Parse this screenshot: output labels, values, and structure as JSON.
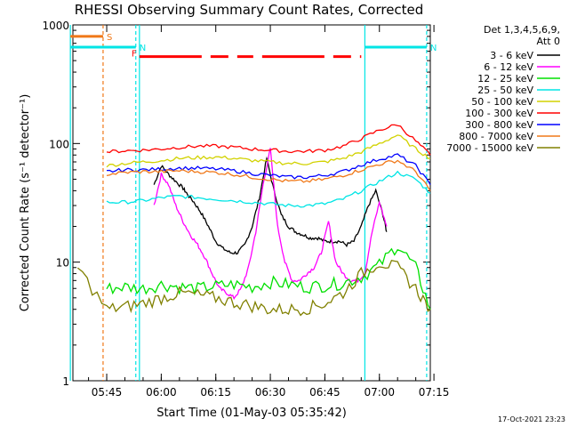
{
  "chart_data": {
    "type": "line",
    "title": "RHESSI Observing Summary Count Rates, Corrected",
    "xlabel": "Start Time (01-May-03 05:35:42)",
    "ylabel": "Corrected Count Rate (s⁻¹ detector⁻¹)",
    "yscale": "log",
    "ylim": [
      1,
      1000
    ],
    "xlim": [
      "05:35:42",
      "07:15"
    ],
    "y_ticks": [
      "1",
      "10",
      "100",
      "1000"
    ],
    "x_ticks": [
      "05:45",
      "06:00",
      "06:15",
      "06:30",
      "06:45",
      "07:00",
      "07:15"
    ],
    "legend_header": [
      "Det 1,3,4,5,6,9,",
      "Att 0"
    ],
    "legend_position": "right",
    "date_stamp": "17-Oct-2021 23:23",
    "flags": [
      {
        "label": "S",
        "color": "#f07818",
        "start": "05:35:42",
        "end": "05:44",
        "level": 800
      },
      {
        "label": "N",
        "color": "#00e5e5",
        "start": "05:35:42",
        "end": "05:53",
        "level": 650
      },
      {
        "label": "N",
        "color": "#00e5e5",
        "start": "06:56",
        "end": "07:13",
        "level": 650
      },
      {
        "label": "F",
        "color": "#ff0000",
        "start": "05:54",
        "end": "06:55",
        "level": 540,
        "dashed": true
      }
    ],
    "markers": [
      {
        "time": "05:35:42",
        "color": "#00e5e5",
        "style": "solid"
      },
      {
        "time": "05:44",
        "color": "#f07818",
        "style": "dashed"
      },
      {
        "time": "05:53",
        "color": "#00e5e5",
        "style": "dashed"
      },
      {
        "time": "05:54",
        "color": "#00e5e5",
        "style": "solid"
      },
      {
        "time": "06:56",
        "color": "#00e5e5",
        "style": "solid"
      },
      {
        "time": "07:13",
        "color": "#00e5e5",
        "style": "dashed"
      }
    ],
    "time_minutes_from_0545": [
      -9.3,
      -7,
      -5,
      0,
      5,
      8,
      8.5,
      10,
      12,
      15,
      18,
      20,
      22,
      25,
      28,
      29,
      30,
      32,
      35,
      38,
      40,
      41,
      43,
      45,
      47,
      49,
      50,
      51,
      52,
      55,
      58,
      60,
      62,
      65,
      68,
      70,
      72,
      75,
      78,
      80,
      85,
      88,
      89
    ],
    "series": [
      {
        "name": "3 - 6 keV",
        "color": "#000000",
        "t": [
          13,
          15,
          17,
          19,
          21,
          22,
          24,
          26,
          28,
          30,
          32,
          34,
          36,
          38,
          40,
          42,
          44,
          46,
          48,
          50,
          52,
          54,
          56,
          58,
          60,
          62,
          64,
          66,
          68,
          70,
          72,
          74,
          76,
          77
        ],
        "values": [
          45,
          65,
          55,
          48,
          42,
          38,
          32,
          26,
          20,
          15,
          13,
          12,
          12,
          14,
          20,
          35,
          75,
          40,
          25,
          20,
          18,
          17,
          16,
          16,
          15,
          15,
          15,
          14,
          15,
          20,
          30,
          40,
          25,
          18
        ]
      },
      {
        "name": "6 - 12 keV",
        "color": "#ff00ff",
        "t": [
          13,
          15,
          17,
          19,
          21,
          23,
          25,
          27,
          29,
          31,
          33,
          35,
          37,
          39,
          41,
          43,
          45,
          47,
          49,
          51,
          53,
          55,
          57,
          59,
          61,
          63,
          65,
          67,
          69,
          71,
          73,
          75,
          77
        ],
        "values": [
          30,
          55,
          45,
          30,
          22,
          17,
          14,
          11,
          8,
          6,
          5.5,
          5,
          6,
          9,
          18,
          45,
          90,
          20,
          10,
          7,
          7,
          8,
          9,
          12,
          22,
          10,
          8,
          7,
          7,
          8,
          18,
          32,
          20
        ]
      },
      {
        "name": "12 - 25 keV",
        "color": "#00e000",
        "t": [
          0,
          5,
          10,
          15,
          20,
          25,
          30,
          35,
          40,
          45,
          50,
          55,
          60,
          65,
          70,
          75,
          80,
          85,
          89
        ],
        "values": [
          6,
          6.2,
          6,
          6.5,
          6.2,
          6,
          6.3,
          6.5,
          6.2,
          6.8,
          6.5,
          6.2,
          6.4,
          6.7,
          7.5,
          9.5,
          14,
          9,
          4
        ]
      },
      {
        "name": "25 - 50 keV",
        "color": "#00e5e5",
        "t": [
          0,
          5,
          10,
          15,
          20,
          25,
          30,
          35,
          40,
          45,
          50,
          55,
          60,
          65,
          70,
          75,
          80,
          85,
          89
        ],
        "values": [
          32,
          32,
          33,
          35,
          36,
          35,
          34,
          33,
          32,
          31,
          30,
          30,
          31,
          34,
          40,
          48,
          57,
          50,
          38
        ]
      },
      {
        "name": "50 - 100 keV",
        "color": "#d2d200",
        "t": [
          0,
          5,
          10,
          15,
          20,
          25,
          30,
          35,
          40,
          45,
          50,
          55,
          60,
          65,
          70,
          75,
          80,
          85,
          89
        ],
        "values": [
          65,
          68,
          70,
          72,
          75,
          76,
          77,
          75,
          72,
          70,
          68,
          68,
          70,
          75,
          85,
          100,
          118,
          90,
          75
        ]
      },
      {
        "name": "100 - 300 keV",
        "color": "#ff0000",
        "t": [
          0,
          5,
          10,
          15,
          20,
          25,
          30,
          35,
          40,
          45,
          50,
          55,
          60,
          65,
          70,
          75,
          80,
          85,
          89
        ],
        "values": [
          85,
          87,
          88,
          90,
          93,
          95,
          95,
          93,
          90,
          88,
          86,
          86,
          88,
          95,
          110,
          130,
          145,
          105,
          80
        ]
      },
      {
        "name": "300 - 800 keV",
        "color": "#0000ff",
        "t": [
          0,
          5,
          10,
          15,
          20,
          25,
          30,
          35,
          40,
          45,
          50,
          55,
          60,
          65,
          70,
          75,
          80,
          85,
          89
        ],
        "values": [
          58,
          60,
          60,
          61,
          62,
          62,
          61,
          59,
          56,
          54,
          52,
          52,
          54,
          58,
          66,
          74,
          80,
          65,
          45
        ]
      },
      {
        "name": "800 - 7000 keV",
        "color": "#f07818",
        "t": [
          0,
          5,
          10,
          15,
          20,
          25,
          30,
          35,
          40,
          45,
          50,
          55,
          60,
          65,
          70,
          75,
          80,
          85,
          89
        ],
        "values": [
          55,
          57,
          58,
          58,
          59,
          58,
          57,
          55,
          52,
          50,
          48,
          48,
          50,
          54,
          60,
          67,
          72,
          58,
          40
        ]
      },
      {
        "name": "7000 - 15000 keV",
        "color": "#808000",
        "t": [
          -8,
          0,
          5,
          10,
          15,
          20,
          25,
          30,
          35,
          40,
          45,
          50,
          55,
          60,
          65,
          70,
          75,
          80,
          85,
          89
        ],
        "values": [
          9,
          4,
          4.2,
          4.5,
          5,
          5.5,
          5.3,
          5,
          4.6,
          4.3,
          4,
          4,
          4.1,
          4.5,
          5.5,
          8,
          10,
          9,
          6,
          4
        ]
      }
    ]
  }
}
